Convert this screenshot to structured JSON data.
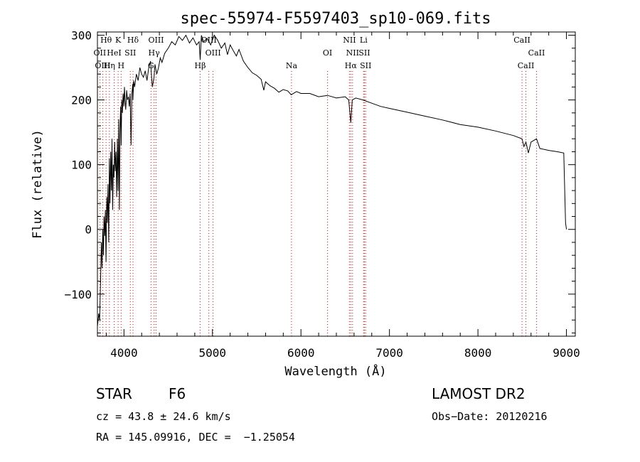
{
  "chart_data": {
    "type": "line",
    "title": "spec-55974-F5597403_sp10-069.fits",
    "xlabel": "Wavelength (Å)",
    "ylabel": "Flux (relative)",
    "xlim": [
      3700,
      9100
    ],
    "ylim": [
      -165,
      305
    ],
    "x_ticks": [
      4000,
      5000,
      6000,
      7000,
      8000,
      9000
    ],
    "x_tick_labels": [
      "4000",
      "5000",
      "6000",
      "7000",
      "8000",
      "9000"
    ],
    "y_ticks": [
      -100,
      0,
      100,
      200,
      300
    ],
    "y_tick_labels": [
      "−100",
      "0",
      "100",
      "200",
      "300"
    ],
    "grid": false,
    "series": [
      {
        "color": "#000000",
        "x": [
          3700,
          3715,
          3725,
          3735,
          3745,
          3752,
          3760,
          3768,
          3775,
          3782,
          3790,
          3797,
          3805,
          3812,
          3820,
          3828,
          3835,
          3842,
          3850,
          3858,
          3865,
          3872,
          3880,
          3887,
          3895,
          3902,
          3910,
          3918,
          3925,
          3933,
          3940,
          3948,
          3955,
          3962,
          3968,
          3975,
          3982,
          3990,
          3998,
          4005,
          4012,
          4020,
          4030,
          4040,
          4050,
          4060,
          4070,
          4080,
          4090,
          4100,
          4102,
          4110,
          4120,
          4140,
          4160,
          4180,
          4200,
          4220,
          4240,
          4260,
          4280,
          4300,
          4320,
          4340,
          4350,
          4370,
          4390,
          4410,
          4430,
          4460,
          4500,
          4540,
          4580,
          4620,
          4660,
          4700,
          4740,
          4780,
          4820,
          4850,
          4861,
          4875,
          4900,
          4940,
          4980,
          5020,
          5060,
          5100,
          5140,
          5170,
          5200,
          5240,
          5270,
          5300,
          5350,
          5400,
          5450,
          5500,
          5550,
          5580,
          5600,
          5650,
          5700,
          5750,
          5800,
          5850,
          5890,
          5950,
          6000,
          6100,
          6200,
          6300,
          6400,
          6500,
          6540,
          6563,
          6580,
          6620,
          6700,
          6800,
          6900,
          7000,
          7200,
          7400,
          7600,
          7800,
          8000,
          8200,
          8400,
          8498,
          8520,
          8542,
          8570,
          8600,
          8662,
          8700,
          8800,
          8900,
          8970,
          8990,
          9000
        ],
        "y": [
          -150,
          -130,
          -140,
          -80,
          -20,
          -60,
          0,
          -40,
          20,
          -10,
          30,
          -50,
          50,
          10,
          70,
          -20,
          110,
          40,
          120,
          60,
          140,
          30,
          100,
          80,
          135,
          90,
          120,
          50,
          140,
          60,
          170,
          30,
          150,
          190,
          130,
          200,
          180,
          210,
          190,
          220,
          200,
          185,
          215,
          200,
          205,
          190,
          210,
          130,
          210,
          225,
          200,
          230,
          220,
          240,
          230,
          250,
          240,
          235,
          245,
          230,
          250,
          260,
          220,
          235,
          255,
          240,
          250,
          265,
          258,
          272,
          280,
          290,
          285,
          298,
          292,
          300,
          288,
          296,
          285,
          290,
          262,
          300,
          290,
          295,
          285,
          300,
          292,
          280,
          288,
          270,
          285,
          275,
          268,
          278,
          260,
          250,
          242,
          238,
          232,
          215,
          228,
          222,
          218,
          212,
          216,
          214,
          208,
          213,
          210,
          210,
          205,
          207,
          203,
          205,
          200,
          165,
          200,
          203,
          200,
          195,
          190,
          187,
          181,
          175,
          169,
          162,
          158,
          152,
          145,
          140,
          128,
          135,
          118,
          135,
          140,
          125,
          122,
          120,
          118,
          10,
          0
        ]
      }
    ],
    "line_markers": [
      {
        "label": "OII",
        "wavelength": 3727,
        "row": 1
      },
      {
        "label": "Hθ",
        "wavelength": 3798,
        "row": 0
      },
      {
        "label": "OIII",
        "wavelength": 3760,
        "row": 2
      },
      {
        "label": "Hη",
        "wavelength": 3835,
        "row": 2
      },
      {
        "label": "HeI",
        "wavelength": 3889,
        "row": 1
      },
      {
        "label": "K",
        "wavelength": 3934,
        "row": 0
      },
      {
        "label": "H",
        "wavelength": 3968,
        "row": 2
      },
      {
        "label": "SII",
        "wavelength": 4072,
        "row": 1
      },
      {
        "label": "Hδ",
        "wavelength": 4102,
        "row": 0
      },
      {
        "label": "OIII",
        "wavelength": 4363,
        "row": 0
      },
      {
        "label": "Hγ",
        "wavelength": 4340,
        "row": 1
      },
      {
        "label": "G",
        "wavelength": 4305,
        "row": 2
      },
      {
        "label": "Hβ",
        "wavelength": 4861,
        "row": 2
      },
      {
        "label": "OIII",
        "wavelength": 4959,
        "row": 0
      },
      {
        "label": "OIII",
        "wavelength": 5007,
        "row": 1
      },
      {
        "label": "Na",
        "wavelength": 5893,
        "row": 2
      },
      {
        "label": "OI",
        "wavelength": 6300,
        "row": 1
      },
      {
        "label": "NII",
        "wavelength": 6548,
        "row": 0
      },
      {
        "label": "NII",
        "wavelength": 6583,
        "row": 1
      },
      {
        "label": "Hα",
        "wavelength": 6563,
        "row": 2
      },
      {
        "label": "Li",
        "wavelength": 6708,
        "row": 0
      },
      {
        "label": "SII",
        "wavelength": 6717,
        "row": 1
      },
      {
        "label": "SII",
        "wavelength": 6731,
        "row": 2
      },
      {
        "label": "CaII",
        "wavelength": 8498,
        "row": 0
      },
      {
        "label": "CaII",
        "wavelength": 8542,
        "row": 2
      },
      {
        "label": "CaII",
        "wavelength": 8662,
        "row": 1
      }
    ],
    "marker_color": "#ff0000"
  },
  "info": {
    "class_label": "STAR",
    "subclass": "F6",
    "survey": "LAMOST DR2",
    "cz": "cz = 43.8 ± 24.6 km/s",
    "obs_date": "Obs−Date: 20120216",
    "radec": "RA = 145.09916, DEC =  −1.25054"
  }
}
